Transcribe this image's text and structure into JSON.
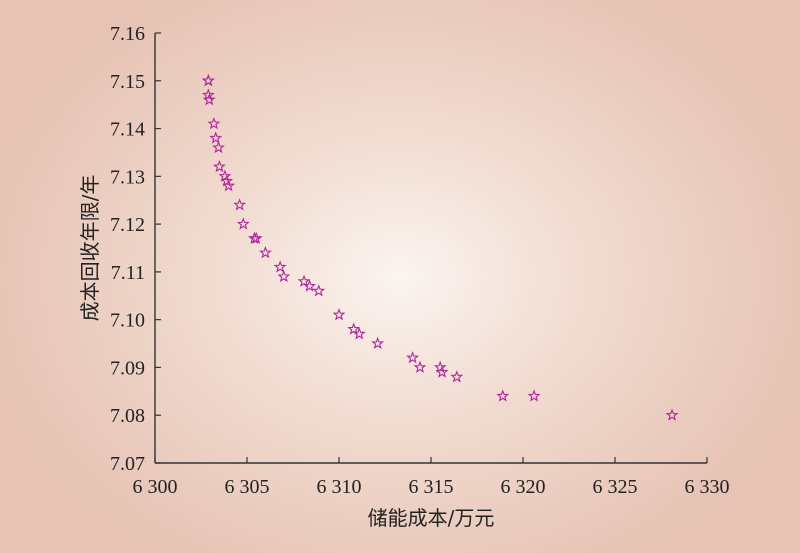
{
  "chart_data": {
    "type": "scatter",
    "title": "",
    "xlabel": "储能成本/万元",
    "ylabel": "成本回收年限/年",
    "xlim": [
      6300,
      6330
    ],
    "ylim": [
      7.07,
      7.16
    ],
    "x_ticks": [
      6300,
      6305,
      6310,
      6315,
      6320,
      6325,
      6330
    ],
    "x_tick_labels": [
      "6 300",
      "6 305",
      "6 310",
      "6 315",
      "6 320",
      "6 325",
      "6 330"
    ],
    "y_ticks": [
      7.07,
      7.08,
      7.09,
      7.1,
      7.11,
      7.12,
      7.13,
      7.14,
      7.15,
      7.16
    ],
    "y_tick_labels": [
      "7.07",
      "7.08",
      "7.09",
      "7.10",
      "7.11",
      "7.12",
      "7.13",
      "7.14",
      "7.15",
      "7.16"
    ],
    "grid": false,
    "marker": "star",
    "marker_color": "#b0269a",
    "series": [
      {
        "points": [
          [
            6302.9,
            7.15
          ],
          [
            6302.9,
            7.15
          ],
          [
            6302.9,
            7.147
          ],
          [
            6302.95,
            7.146
          ],
          [
            6303.2,
            7.141
          ],
          [
            6303.3,
            7.138
          ],
          [
            6303.45,
            7.136
          ],
          [
            6303.5,
            7.132
          ],
          [
            6303.8,
            7.13
          ],
          [
            6303.9,
            7.129
          ],
          [
            6304.0,
            7.128
          ],
          [
            6304.6,
            7.124
          ],
          [
            6304.8,
            7.12
          ],
          [
            6305.4,
            7.117
          ],
          [
            6305.5,
            7.117
          ],
          [
            6306.0,
            7.114
          ],
          [
            6306.8,
            7.111
          ],
          [
            6307.0,
            7.109
          ],
          [
            6308.1,
            7.108
          ],
          [
            6308.4,
            7.107
          ],
          [
            6308.9,
            7.106
          ],
          [
            6310.0,
            7.101
          ],
          [
            6310.8,
            7.098
          ],
          [
            6311.1,
            7.097
          ],
          [
            6312.1,
            7.095
          ],
          [
            6314.0,
            7.092
          ],
          [
            6314.4,
            7.09
          ],
          [
            6315.5,
            7.09
          ],
          [
            6315.6,
            7.089
          ],
          [
            6316.4,
            7.088
          ],
          [
            6318.9,
            7.084
          ],
          [
            6320.6,
            7.084
          ],
          [
            6328.1,
            7.08
          ]
        ]
      }
    ]
  }
}
